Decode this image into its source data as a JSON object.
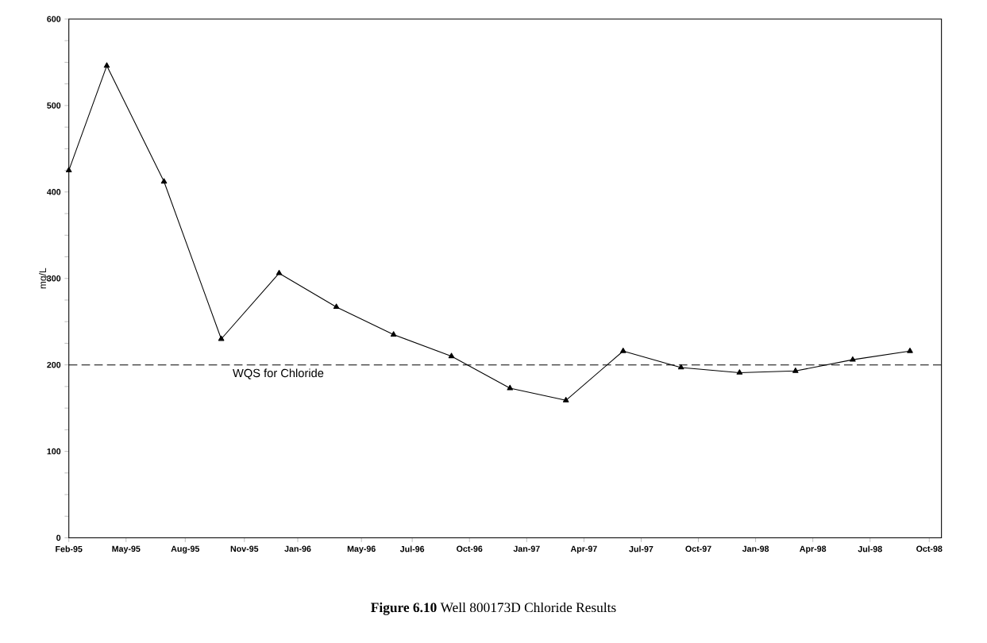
{
  "chart_data": {
    "type": "line",
    "title": "**Figure 6.10**   Well 800173D Chloride Results",
    "ylabel": "mg/L",
    "x": [
      "1995-02-01",
      "1995-04-01",
      "1995-06-29",
      "1995-09-26",
      "1995-12-25",
      "1996-03-23",
      "1996-06-20",
      "1996-09-18",
      "1996-12-18",
      "1997-03-15",
      "1997-06-12",
      "1997-09-10",
      "1997-12-10",
      "1998-03-07",
      "1998-06-04",
      "1998-09-01"
    ],
    "series": [
      {
        "color": "#000000",
        "values": [
          425,
          546,
          412,
          230,
          306,
          267,
          235,
          210,
          173,
          159,
          216,
          197,
          191,
          193,
          206,
          216
        ]
      }
    ],
    "marker": "triangle",
    "line_style": "solid",
    "grid": false,
    "xlim": [
      "1995-02-01",
      "1998-10-20"
    ],
    "xticks": [
      {
        "value": "1995-02-01",
        "label": "Feb-95"
      },
      {
        "value": "1995-05-01",
        "label": "May-95"
      },
      {
        "value": "1995-08-01",
        "label": "Aug-95"
      },
      {
        "value": "1995-11-01",
        "label": "Nov-95"
      },
      {
        "value": "1996-01-23",
        "label": "Jan-96"
      },
      {
        "value": "1996-05-01",
        "label": "May-96"
      },
      {
        "value": "1996-07-19",
        "label": "Jul-96"
      },
      {
        "value": "1996-10-16",
        "label": "Oct-96"
      },
      {
        "value": "1997-01-13",
        "label": "Jan-97"
      },
      {
        "value": "1997-04-12",
        "label": "Apr-97"
      },
      {
        "value": "1997-07-10",
        "label": "Jul-97"
      },
      {
        "value": "1997-10-07",
        "label": "Oct-97"
      },
      {
        "value": "1998-01-04",
        "label": "Jan-98"
      },
      {
        "value": "1998-04-03",
        "label": "Apr-98"
      },
      {
        "value": "1998-07-01",
        "label": "Jul-98"
      },
      {
        "value": "1998-10-01",
        "label": "Oct-98"
      }
    ],
    "ylim": [
      0,
      600
    ],
    "yticks": [
      0,
      {
        "value": 25,
        "label": null
      },
      {
        "value": 50,
        "label": null
      },
      {
        "value": 75,
        "label": null
      },
      100,
      {
        "value": 125,
        "label": null
      },
      {
        "value": 150,
        "label": null
      },
      {
        "value": 175,
        "label": null
      },
      200,
      {
        "value": 225,
        "label": null
      },
      {
        "value": 250,
        "label": null
      },
      {
        "value": 275,
        "label": null
      },
      300,
      {
        "value": 325,
        "label": null
      },
      {
        "value": 350,
        "label": null
      },
      {
        "value": 375,
        "label": null
      },
      400,
      {
        "value": 425,
        "label": null
      },
      {
        "value": 450,
        "label": null
      },
      {
        "value": 475,
        "label": null
      },
      500,
      {
        "value": 525,
        "label": null
      },
      {
        "value": 550,
        "label": null
      },
      {
        "value": 575,
        "label": null
      },
      600
    ],
    "ref_lines": [
      {
        "axis": "y",
        "value": 200,
        "label": "WQS for Chloride",
        "line_style": "dashed",
        "color": "#000000"
      }
    ]
  }
}
